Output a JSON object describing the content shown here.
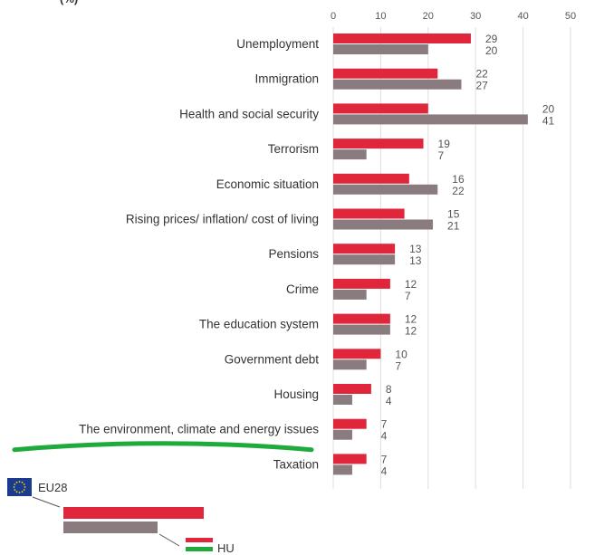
{
  "top_cut_label": "(%)",
  "chart_data": {
    "type": "bar",
    "orientation": "horizontal",
    "title": "",
    "xlabel": "",
    "ylabel": "",
    "xlim": [
      0,
      50
    ],
    "x_ticks": [
      0,
      10,
      20,
      30,
      40,
      50
    ],
    "grid": true,
    "categories": [
      "Unemployment",
      "Immigration",
      "Health and social security",
      "Terrorism",
      "Economic situation",
      "Rising prices/ inflation/ cost of living",
      "Pensions",
      "Crime",
      "The education system",
      "Government debt",
      "Housing",
      "The environment, climate and energy issues",
      "Taxation"
    ],
    "series": [
      {
        "name": "HU",
        "color": "#e0263a",
        "values": [
          29,
          22,
          20,
          19,
          16,
          15,
          13,
          12,
          12,
          10,
          8,
          7,
          7
        ]
      },
      {
        "name": "EU28",
        "color": "#8a7b7e",
        "values": [
          20,
          27,
          41,
          7,
          22,
          21,
          13,
          7,
          12,
          7,
          4,
          4,
          4
        ]
      }
    ],
    "highlight": {
      "category": "The environment, climate and energy issues",
      "color": "#1faa3c"
    }
  },
  "legend": {
    "eu_label": "EU28",
    "hu_label": "HU",
    "eu_flag_icon": "eu-flag-icon",
    "hu_flag_icon": "hungary-flag-icon",
    "hu_flag_colors": [
      "#e0263a",
      "#ffffff",
      "#1faa3c"
    ]
  }
}
